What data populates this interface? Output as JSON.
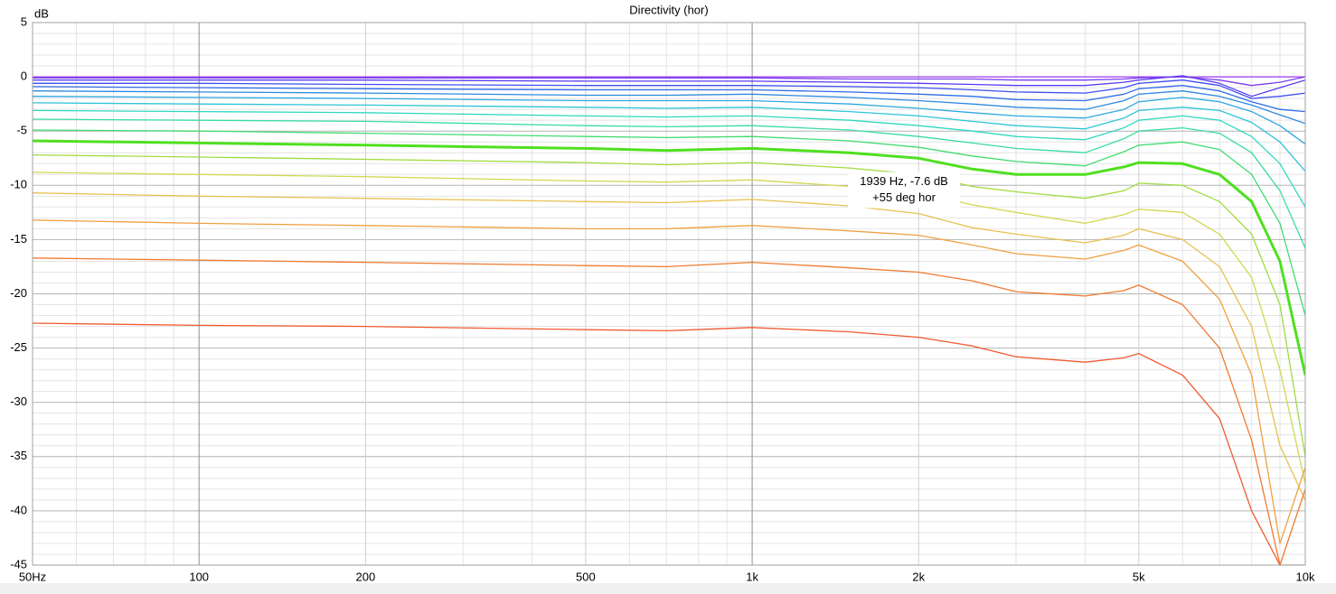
{
  "chart_data": {
    "type": "line",
    "title": "Directivity (hor)",
    "y_label": "dB",
    "log_x": true,
    "grid": true,
    "xlim": [
      50,
      10000
    ],
    "ylim": [
      -45,
      5
    ],
    "xticks": [
      {
        "value": 50,
        "label": "50Hz"
      },
      100,
      200,
      500,
      {
        "value": 1000,
        "label": "1k"
      },
      {
        "value": 2000,
        "label": "2k"
      },
      {
        "value": 5000,
        "label": "5k"
      },
      {
        "value": 10000,
        "label": "10k"
      }
    ],
    "xminorticks": [
      60,
      70,
      80,
      90,
      300,
      400,
      600,
      700,
      800,
      900,
      3000,
      4000,
      6000,
      7000,
      8000,
      9000
    ],
    "yticks": [
      5,
      0,
      -5,
      -10,
      -15,
      -20,
      -25,
      -30,
      -35,
      -40,
      -45
    ],
    "yminorticks": [
      4,
      3,
      2,
      1,
      -1,
      -2,
      -3,
      -4,
      -6,
      -7,
      -8,
      -9,
      -11,
      -12,
      -13,
      -14,
      -16,
      -17,
      -18,
      -19,
      -21,
      -22,
      -23,
      -24,
      -26,
      -27,
      -28,
      -29,
      -31,
      -32,
      -33,
      -34,
      -36,
      -37,
      -38,
      -39,
      -41,
      -42,
      -43,
      -44
    ],
    "x": [
      50,
      100,
      200,
      500,
      700,
      1000,
      1500,
      2000,
      2500,
      3000,
      4000,
      4700,
      5000,
      6000,
      7000,
      8000,
      9000,
      10000
    ],
    "series": [
      {
        "color": "#9b3cf0",
        "values": [
          0,
          0,
          0,
          0,
          0,
          0,
          0,
          0,
          0,
          0,
          0,
          0,
          0,
          0,
          0,
          0,
          0,
          0
        ]
      },
      {
        "color": "#7b3cf0",
        "values": [
          -0.1,
          -0.1,
          -0.1,
          -0.1,
          -0.1,
          -0.1,
          -0.2,
          -0.2,
          -0.2,
          -0.3,
          -0.3,
          -0.2,
          -0.1,
          0,
          -0.3,
          -0.8,
          -0.5,
          0
        ]
      },
      {
        "color": "#5a3cf0",
        "values": [
          -0.3,
          -0.3,
          -0.3,
          -0.4,
          -0.4,
          -0.4,
          -0.5,
          -0.6,
          -0.7,
          -0.8,
          -0.8,
          -0.5,
          -0.3,
          0.1,
          -0.6,
          -1.8,
          -1.0,
          -0.3
        ]
      },
      {
        "color": "#3c4ef0",
        "values": [
          -0.6,
          -0.6,
          -0.7,
          -0.8,
          -0.8,
          -0.8,
          -0.9,
          -1.0,
          -1.2,
          -1.4,
          -1.5,
          -1.0,
          -0.6,
          -0.3,
          -0.8,
          -2.0,
          -1.8,
          -1.5
        ]
      },
      {
        "color": "#2f6be8",
        "values": [
          -0.9,
          -1.0,
          -1.1,
          -1.2,
          -1.2,
          -1.2,
          -1.4,
          -1.6,
          -1.8,
          -2.1,
          -2.2,
          -1.6,
          -1.1,
          -0.8,
          -1.3,
          -2.3,
          -3.0,
          -3.2
        ]
      },
      {
        "color": "#2e8ae0",
        "values": [
          -1.3,
          -1.4,
          -1.5,
          -1.7,
          -1.7,
          -1.6,
          -1.9,
          -2.2,
          -2.5,
          -2.8,
          -3.0,
          -2.2,
          -1.6,
          -1.3,
          -1.8,
          -2.6,
          -3.5,
          -4.3
        ]
      },
      {
        "color": "#2ea8e0",
        "values": [
          -1.8,
          -1.9,
          -2.0,
          -2.2,
          -2.2,
          -2.2,
          -2.5,
          -2.9,
          -3.3,
          -3.6,
          -3.8,
          -3.0,
          -2.3,
          -1.9,
          -2.3,
          -3.2,
          -4.5,
          -6.2
        ]
      },
      {
        "color": "#2fc4d8",
        "values": [
          -2.4,
          -2.5,
          -2.6,
          -2.8,
          -2.9,
          -2.8,
          -3.2,
          -3.6,
          -4.1,
          -4.5,
          -4.8,
          -3.8,
          -3.1,
          -2.8,
          -3.1,
          -4.2,
          -6.0,
          -8.7
        ]
      },
      {
        "color": "#30d8c0",
        "values": [
          -3.1,
          -3.2,
          -3.3,
          -3.6,
          -3.7,
          -3.6,
          -4.0,
          -4.5,
          -5.0,
          -5.5,
          -5.8,
          -4.7,
          -4.0,
          -3.6,
          -4.0,
          -5.5,
          -8.0,
          -12.0
        ]
      },
      {
        "color": "#3adca0",
        "values": [
          -3.9,
          -4.0,
          -4.1,
          -4.5,
          -4.6,
          -4.5,
          -4.9,
          -5.5,
          -6.1,
          -6.6,
          -7.0,
          -5.7,
          -5.0,
          -4.7,
          -5.2,
          -7.0,
          -10.5,
          -15.8
        ]
      },
      {
        "color": "#40dc70",
        "values": [
          -4.9,
          -5.0,
          -5.2,
          -5.5,
          -5.6,
          -5.5,
          -5.9,
          -6.5,
          -7.3,
          -7.8,
          -8.2,
          -6.9,
          -6.3,
          -6.0,
          -6.7,
          -9.0,
          -13.5,
          -22.0
        ]
      },
      {
        "color": "#4fe020",
        "highlight": true,
        "values": [
          -5.9,
          -6.1,
          -6.3,
          -6.6,
          -6.8,
          -6.6,
          -7.0,
          -7.5,
          -8.5,
          -9.0,
          -9.0,
          -8.3,
          -7.9,
          -8.0,
          -9.0,
          -11.5,
          -17.0,
          -27.5
        ]
      },
      {
        "color": "#a0dc40",
        "values": [
          -7.2,
          -7.4,
          -7.6,
          -7.9,
          -8.1,
          -7.9,
          -8.4,
          -9.0,
          -10.1,
          -10.6,
          -11.2,
          -10.5,
          -9.8,
          -10.0,
          -11.5,
          -14.5,
          -21.0,
          -35.0
        ]
      },
      {
        "color": "#d0d850",
        "values": [
          -8.8,
          -9.0,
          -9.2,
          -9.6,
          -9.7,
          -9.5,
          -10.1,
          -10.7,
          -11.8,
          -12.5,
          -13.5,
          -12.7,
          -12.2,
          -12.5,
          -14.5,
          -18.5,
          -27.0,
          -37.5
        ]
      },
      {
        "color": "#e8c050",
        "values": [
          -10.7,
          -11.0,
          -11.2,
          -11.5,
          -11.6,
          -11.3,
          -11.9,
          -12.6,
          -13.9,
          -14.5,
          -15.3,
          -14.6,
          -14.0,
          -15.0,
          -17.5,
          -23.0,
          -34.0,
          -39.0
        ]
      },
      {
        "color": "#f0a040",
        "values": [
          -13.2,
          -13.5,
          -13.7,
          -14.0,
          -14.0,
          -13.7,
          -14.2,
          -14.6,
          -15.5,
          -16.3,
          -16.8,
          -16.0,
          -15.5,
          -17.0,
          -20.5,
          -27.5,
          -43.0,
          -36.0
        ]
      },
      {
        "color": "#f07a30",
        "values": [
          -16.7,
          -16.9,
          -17.1,
          -17.4,
          -17.5,
          -17.1,
          -17.6,
          -18.0,
          -18.8,
          -19.8,
          -20.2,
          -19.7,
          -19.2,
          -21.0,
          -25.0,
          -33.5,
          -45,
          -38
        ]
      },
      {
        "color": "#f05a30",
        "values": [
          -22.7,
          -22.9,
          -23.0,
          -23.3,
          -23.4,
          -23.1,
          -23.5,
          -24.0,
          -24.8,
          -25.8,
          -26.3,
          -25.9,
          -25.5,
          -27.5,
          -31.5,
          -40.0,
          -45,
          -45
        ]
      }
    ],
    "tooltip": {
      "x": 1939,
      "y": -7.6,
      "line1": "1939 Hz, -7.6 dB",
      "line2": "+55 deg hor"
    }
  }
}
